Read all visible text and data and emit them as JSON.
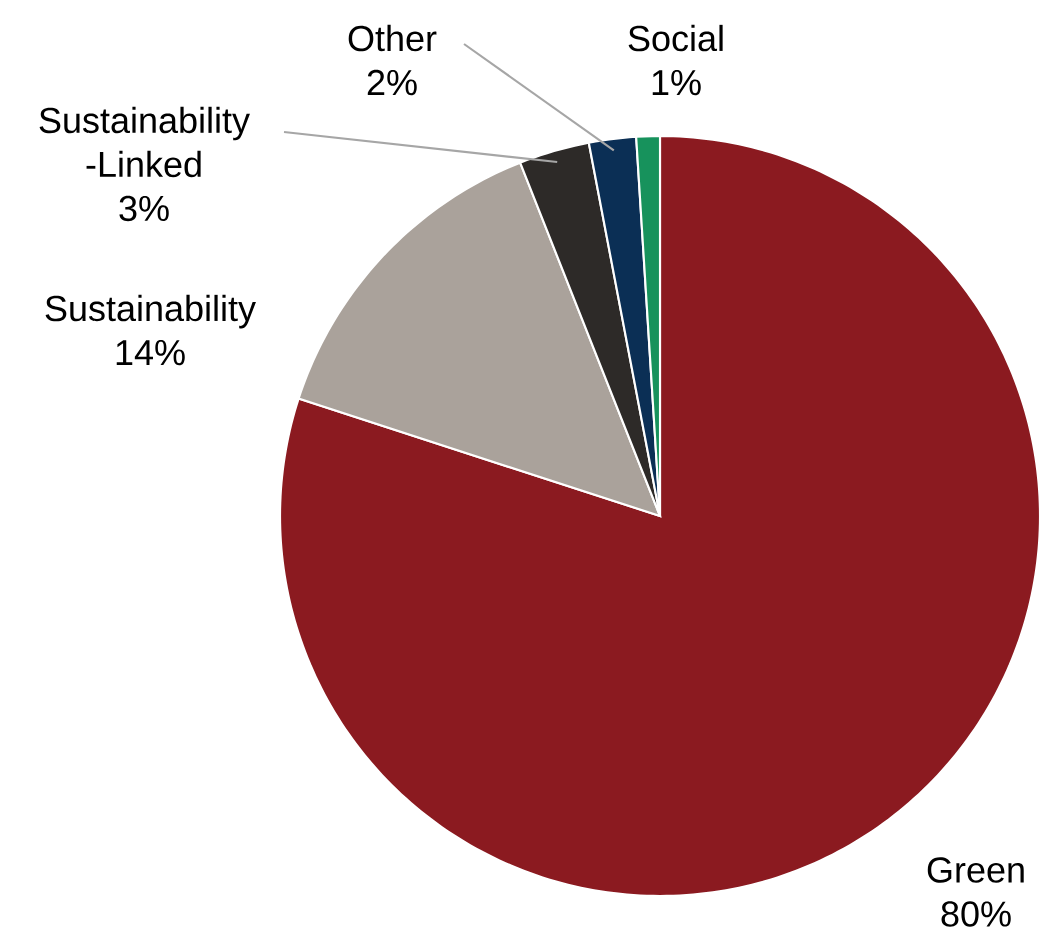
{
  "chart_data": {
    "type": "pie",
    "categories": [
      "Green",
      "Sustainability",
      "Sustainability -Linked",
      "Other",
      "Social"
    ],
    "values": [
      80,
      14,
      3,
      2,
      1
    ],
    "value_labels": [
      "80%",
      "14%",
      "3%",
      "2%",
      "1%"
    ],
    "colors": [
      "#8b1a20",
      "#aaa29b",
      "#2d2a28",
      "#0b2f55",
      "#17925c"
    ]
  }
}
